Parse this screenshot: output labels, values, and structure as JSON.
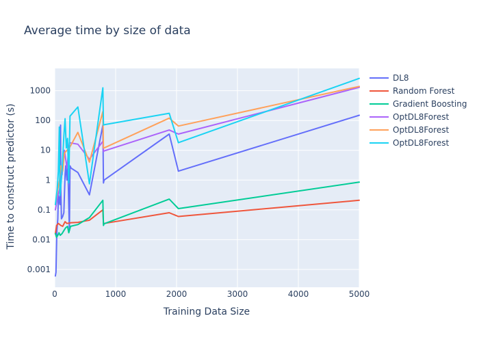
{
  "chart_data": {
    "type": "line",
    "title": "Average time by size of data",
    "xlabel": "Training Data Size",
    "ylabel": "Time to construct predictor (s)",
    "xlim": [
      0,
      5000
    ],
    "ylim_log10": [
      -3.6,
      3.75
    ],
    "y_scale": "log",
    "grid": true,
    "legend_position": "top-right",
    "x_ticks": [
      0,
      1000,
      2000,
      3000,
      4000,
      5000
    ],
    "x_tick_labels": [
      "0",
      "1000",
      "2000",
      "3000",
      "4000",
      "5000"
    ],
    "y_ticks": [
      0.001,
      0.01,
      0.1,
      1,
      10,
      100,
      1000
    ],
    "y_tick_labels": [
      "0.001",
      "0.01",
      "0.1",
      "1",
      "10",
      "100",
      "1000"
    ],
    "colors": {
      "plot_bg": "#e5ecf6",
      "grid": "#ffffff",
      "text": "#2a3f5f"
    },
    "series": [
      {
        "name": "DL8",
        "color": "#636efa",
        "points": [
          [
            10,
            0.0006
          ],
          [
            20,
            0.0008
          ],
          [
            35,
            0.02
          ],
          [
            50,
            0.05
          ],
          [
            60,
            0.3
          ],
          [
            75,
            0.18
          ],
          [
            85,
            0.15
          ],
          [
            95,
            70
          ],
          [
            100,
            0.5
          ],
          [
            110,
            0.05
          ],
          [
            130,
            0.06
          ],
          [
            150,
            0.08
          ],
          [
            170,
            1.5
          ],
          [
            180,
            3
          ],
          [
            200,
            1
          ],
          [
            210,
            2.5
          ],
          [
            220,
            1.2
          ],
          [
            240,
            0.02
          ],
          [
            250,
            3
          ],
          [
            270,
            2.5
          ],
          [
            380,
            1.8
          ],
          [
            570,
            0.32
          ],
          [
            790,
            70
          ],
          [
            800,
            0.8
          ],
          [
            810,
            1
          ],
          [
            1880,
            35
          ],
          [
            2030,
            2
          ],
          [
            5000,
            150
          ]
        ]
      },
      {
        "name": "Random Forest",
        "color": "#ef553b",
        "points": [
          [
            10,
            0.016
          ],
          [
            30,
            0.03
          ],
          [
            60,
            0.035
          ],
          [
            100,
            0.03
          ],
          [
            130,
            0.028
          ],
          [
            170,
            0.04
          ],
          [
            200,
            0.035
          ],
          [
            240,
            0.036
          ],
          [
            270,
            0.037
          ],
          [
            380,
            0.038
          ],
          [
            570,
            0.045
          ],
          [
            790,
            0.1
          ],
          [
            800,
            0.034
          ],
          [
            810,
            0.035
          ],
          [
            1880,
            0.08
          ],
          [
            2030,
            0.06
          ],
          [
            5000,
            0.21
          ]
        ]
      },
      {
        "name": "Gradient Boosting",
        "color": "#00cc96",
        "points": [
          [
            10,
            0.016
          ],
          [
            30,
            0.012
          ],
          [
            50,
            0.014
          ],
          [
            70,
            0.017
          ],
          [
            90,
            0.014
          ],
          [
            120,
            0.016
          ],
          [
            150,
            0.02
          ],
          [
            180,
            0.025
          ],
          [
            210,
            0.028
          ],
          [
            230,
            0.017
          ],
          [
            260,
            0.028
          ],
          [
            380,
            0.032
          ],
          [
            570,
            0.055
          ],
          [
            790,
            0.21
          ],
          [
            800,
            0.03
          ],
          [
            810,
            0.034
          ],
          [
            1880,
            0.23
          ],
          [
            2030,
            0.11
          ],
          [
            5000,
            0.85
          ]
        ]
      },
      {
        "name": "OptDL8Forest",
        "color": "#ab63fa",
        "points": [
          [
            10,
            0.1
          ],
          [
            50,
            0.3
          ],
          [
            80,
            0.5
          ],
          [
            100,
            2
          ],
          [
            120,
            1.5
          ],
          [
            160,
            10
          ],
          [
            200,
            2.5
          ],
          [
            240,
            18
          ],
          [
            380,
            16
          ],
          [
            570,
            5
          ],
          [
            790,
            20
          ],
          [
            800,
            9
          ],
          [
            810,
            9.5
          ],
          [
            1880,
            48
          ],
          [
            2030,
            35
          ],
          [
            5000,
            1300
          ]
        ]
      },
      {
        "name": "OptDL8Forest",
        "color": "#ffa15a",
        "points": [
          [
            10,
            0.15
          ],
          [
            50,
            0.5
          ],
          [
            80,
            1
          ],
          [
            100,
            3
          ],
          [
            130,
            2
          ],
          [
            160,
            8
          ],
          [
            200,
            10
          ],
          [
            240,
            12
          ],
          [
            380,
            40
          ],
          [
            570,
            4
          ],
          [
            790,
            200
          ],
          [
            800,
            12
          ],
          [
            810,
            12
          ],
          [
            1880,
            120
          ],
          [
            2030,
            65
          ],
          [
            5000,
            1400
          ]
        ]
      },
      {
        "name": "OptDL8Forest",
        "color": "#19d3f3",
        "points": [
          [
            10,
            0.15
          ],
          [
            40,
            0.5
          ],
          [
            60,
            2
          ],
          [
            75,
            60
          ],
          [
            85,
            0.3
          ],
          [
            95,
            0.5
          ],
          [
            120,
            2
          ],
          [
            150,
            30
          ],
          [
            170,
            115
          ],
          [
            190,
            12
          ],
          [
            210,
            25
          ],
          [
            230,
            0.8
          ],
          [
            250,
            140
          ],
          [
            380,
            285
          ],
          [
            570,
            0.75
          ],
          [
            790,
            1250
          ],
          [
            800,
            70
          ],
          [
            810,
            72
          ],
          [
            1880,
            175
          ],
          [
            2030,
            18
          ],
          [
            5000,
            2600
          ]
        ]
      }
    ]
  }
}
